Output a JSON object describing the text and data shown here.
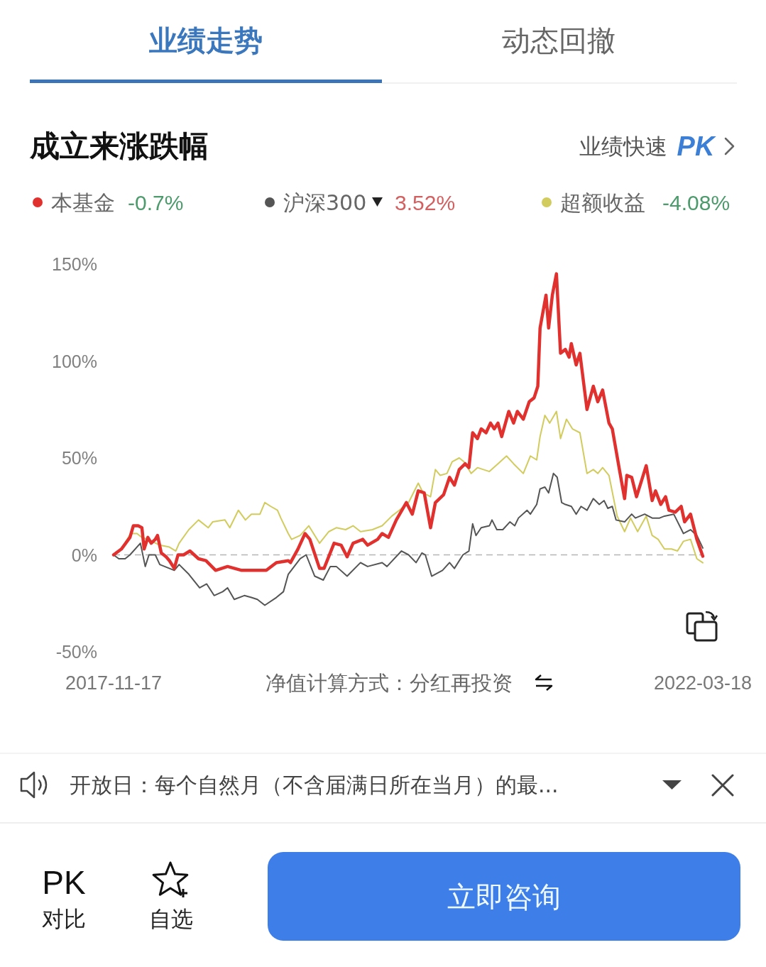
{
  "chart_data": {
    "type": "line",
    "title": "成立来涨跌幅",
    "annotations": [
      "业绩走势",
      "动态回撤",
      "业绩快速",
      "PK",
      "-0.7%",
      "3.52%",
      "-4.08%",
      "净值计算方式：分红再投资",
      "开放日：每个自然月（不含届满日所在当月）的最...",
      "PK",
      "对比",
      "自选",
      "立即咨询"
    ],
    "xlim": [
      "2017-11-17",
      "2022-03-18"
    ],
    "xticks": [
      "2017-11-17",
      "2022-03-18"
    ],
    "ylim": [
      -50,
      150
    ],
    "yticks": [
      {
        "value": -50,
        "label": "-50%"
      },
      {
        "value": 0,
        "label": "0%"
      },
      {
        "value": 50,
        "label": "50%"
      },
      {
        "value": 100,
        "label": "100%"
      },
      {
        "value": 150,
        "label": "150%"
      }
    ],
    "legend": "top",
    "ref_lines": [
      {
        "axis": "y",
        "value": 0,
        "color": "#b5b5b5",
        "line_style": "dashed"
      }
    ],
    "series": [
      {
        "name": "本基金",
        "color": "#e0312f",
        "x": [
          "2017-11-17",
          "2017-12-08",
          "2017-12-31",
          "2018-01-09",
          "2018-01-22",
          "2018-02-01",
          "2018-02-07",
          "2018-02-17",
          "2018-02-26",
          "2018-03-09",
          "2018-03-15",
          "2018-03-25",
          "2018-04-07",
          "2018-04-16",
          "2018-04-29",
          "2018-05-09",
          "2018-05-24",
          "2018-06-10",
          "2018-07-03",
          "2018-07-23",
          "2018-08-18",
          "2018-09-19",
          "2018-10-27",
          "2018-11-22",
          "2019-01-01",
          "2019-01-28",
          "2019-03-01",
          "2019-03-07",
          "2019-03-27",
          "2019-04-15",
          "2019-04-28",
          "2019-05-24",
          "2019-06-05",
          "2019-07-02",
          "2019-07-21",
          "2019-08-06",
          "2019-08-22",
          "2019-09-17",
          "2019-09-30",
          "2019-10-27",
          "2019-11-08",
          "2019-11-25",
          "2019-12-16",
          "2020-01-12",
          "2020-01-28",
          "2020-02-13",
          "2020-02-29",
          "2020-03-17",
          "2020-03-30",
          "2020-04-21",
          "2020-05-07",
          "2020-05-20",
          "2020-06-02",
          "2020-06-18",
          "2020-06-28",
          "2020-07-08",
          "2020-07-21",
          "2020-07-31",
          "2020-08-13",
          "2020-08-25",
          "2020-09-04",
          "2020-09-14",
          "2020-09-24",
          "2020-10-13",
          "2020-10-26",
          "2020-11-05",
          "2020-11-21",
          "2020-12-07",
          "2020-12-20",
          "2020-12-30",
          "2021-01-05",
          "2021-01-21",
          "2021-01-28",
          "2021-02-07",
          "2021-02-18",
          "2021-03-01",
          "2021-03-14",
          "2021-03-24",
          "2021-03-30",
          "2021-04-12",
          "2021-04-22",
          "2021-05-11",
          "2021-05-28",
          "2021-06-09",
          "2021-06-22",
          "2021-07-09",
          "2021-07-18",
          "2021-08-07",
          "2021-08-20",
          "2021-08-26",
          "2021-09-08",
          "2021-09-21",
          "2021-10-17",
          "2021-11-02",
          "2021-11-11",
          "2021-11-25",
          "2021-12-08",
          "2021-12-17",
          "2022-01-03",
          "2022-01-19",
          "2022-01-28",
          "2022-02-13",
          "2022-03-02",
          "2022-03-18"
        ],
        "values": [
          0,
          3,
          9,
          15,
          15,
          14,
          3,
          9,
          6,
          8,
          10,
          1,
          -1,
          -3,
          -7,
          0,
          0,
          2,
          -2,
          -3,
          -8,
          -6,
          -8,
          -8,
          -8,
          -4,
          -3,
          -4,
          3,
          11,
          8,
          -7,
          -7,
          6,
          5,
          -1,
          6,
          8,
          5,
          8,
          11,
          9,
          18,
          27,
          21,
          33,
          32,
          14,
          27,
          31,
          40,
          36,
          44,
          47,
          45,
          63,
          60,
          65,
          63,
          68,
          65,
          68,
          61,
          74,
          68,
          74,
          70,
          79,
          81,
          87,
          117,
          134,
          117,
          134,
          145,
          104,
          106,
          102,
          109,
          98,
          104,
          75,
          87,
          79,
          85,
          68,
          65,
          43,
          29,
          41,
          40,
          30,
          46,
          28,
          33,
          26,
          30,
          23,
          22,
          25,
          17,
          21,
          8,
          -0.7
        ]
      },
      {
        "name": "沪深300",
        "color": "#555555",
        "x": [
          "2017-11-17",
          "2017-12-01",
          "2017-12-18",
          "2017-12-31",
          "2018-01-28",
          "2018-02-10",
          "2018-02-20",
          "2018-03-09",
          "2018-03-21",
          "2018-04-16",
          "2018-04-29",
          "2018-05-12",
          "2018-06-07",
          "2018-07-06",
          "2018-07-25",
          "2018-08-14",
          "2018-09-06",
          "2018-09-19",
          "2018-10-07",
          "2018-11-03",
          "2018-11-22",
          "2018-12-08",
          "2018-12-28",
          "2019-01-28",
          "2019-02-16",
          "2019-03-01",
          "2019-04-02",
          "2019-04-18",
          "2019-05-11",
          "2019-06-03",
          "2019-06-22",
          "2019-07-08",
          "2019-08-06",
          "2019-09-11",
          "2019-09-30",
          "2019-11-08",
          "2019-11-21",
          "2019-12-30",
          "2020-01-18",
          "2020-02-07",
          "2020-02-23",
          "2020-03-03",
          "2020-03-20",
          "2020-04-18",
          "2020-05-07",
          "2020-05-20",
          "2020-06-12",
          "2020-06-28",
          "2020-07-08",
          "2020-07-17",
          "2020-07-31",
          "2020-08-22",
          "2020-08-29",
          "2020-09-11",
          "2020-09-27",
          "2020-10-16",
          "2020-10-29",
          "2020-11-08",
          "2020-12-01",
          "2020-12-10",
          "2020-12-27",
          "2021-01-05",
          "2021-01-18",
          "2021-01-28",
          "2021-02-10",
          "2021-02-20",
          "2021-03-04",
          "2021-03-14",
          "2021-03-30",
          "2021-04-12",
          "2021-04-25",
          "2021-05-11",
          "2021-05-28",
          "2021-06-13",
          "2021-06-26",
          "2021-07-06",
          "2021-07-18",
          "2021-07-28",
          "2021-08-20",
          "2021-09-08",
          "2021-09-18",
          "2021-10-13",
          "2021-11-02",
          "2021-11-22",
          "2021-12-05",
          "2021-12-30",
          "2022-01-25",
          "2022-02-13",
          "2022-03-02",
          "2022-03-18"
        ],
        "values": [
          0,
          -2,
          -2,
          0,
          6,
          -6,
          0,
          0,
          -5,
          -7,
          -8,
          -5,
          -10,
          -17,
          -15,
          -21,
          -19,
          -17,
          -23,
          -21,
          -22,
          -23,
          -26,
          -22,
          -19,
          -10,
          -2,
          0,
          -11,
          -13,
          -6,
          -6,
          -11,
          -4,
          -6,
          -4,
          -6,
          2,
          0,
          -4,
          1,
          0,
          -11,
          -8,
          -4,
          -7,
          0,
          2,
          16,
          10,
          14,
          15,
          18,
          13,
          13,
          17,
          15,
          19,
          23,
          21,
          26,
          34,
          35,
          32,
          42,
          40,
          27,
          26,
          25,
          21,
          25,
          23,
          29,
          26,
          28,
          24,
          25,
          18,
          17,
          21,
          19,
          21,
          19,
          19,
          20,
          21,
          11,
          13,
          10,
          3.52
        ]
      },
      {
        "name": "超额收益",
        "color": "#d2cc5e",
        "x": [
          "2017-11-17",
          "2017-12-08",
          "2018-01-02",
          "2018-01-19",
          "2018-02-01",
          "2018-02-17",
          "2018-03-21",
          "2018-04-16",
          "2018-05-03",
          "2018-05-12",
          "2018-06-07",
          "2018-07-03",
          "2018-07-29",
          "2018-08-10",
          "2018-09-12",
          "2018-09-25",
          "2018-10-18",
          "2018-11-06",
          "2018-11-22",
          "2018-12-15",
          "2018-12-28",
          "2019-01-13",
          "2019-01-31",
          "2019-02-09",
          "2019-03-01",
          "2019-03-10",
          "2019-04-02",
          "2019-04-25",
          "2019-05-24",
          "2019-06-18",
          "2019-07-08",
          "2019-08-02",
          "2019-08-22",
          "2019-09-11",
          "2019-10-13",
          "2019-11-08",
          "2019-12-04",
          "2019-12-24",
          "2020-01-18",
          "2020-02-13",
          "2020-02-26",
          "2020-03-17",
          "2020-03-30",
          "2020-04-12",
          "2020-04-30",
          "2020-05-14",
          "2020-06-02",
          "2020-06-15",
          "2020-07-04",
          "2020-07-21",
          "2020-08-22",
          "2020-09-14",
          "2020-10-07",
          "2020-10-26",
          "2020-11-21",
          "2020-12-10",
          "2020-12-27",
          "2021-01-05",
          "2021-01-18",
          "2021-01-31",
          "2021-02-18",
          "2021-03-01",
          "2021-03-17",
          "2021-04-02",
          "2021-04-22",
          "2021-05-11",
          "2021-05-28",
          "2021-06-09",
          "2021-06-22",
          "2021-07-09",
          "2021-07-31",
          "2021-08-20",
          "2021-09-05",
          "2021-09-24",
          "2021-10-17",
          "2021-11-02",
          "2021-11-18",
          "2021-12-05",
          "2021-12-24",
          "2022-01-09",
          "2022-01-25",
          "2022-02-13",
          "2022-03-02",
          "2022-03-18"
        ],
        "values": [
          0,
          3,
          11,
          11,
          9,
          8,
          5,
          4,
          2,
          6,
          13,
          18,
          14,
          17,
          18,
          14,
          23,
          18,
          21,
          21,
          27,
          25,
          23,
          19,
          11,
          8,
          10,
          15,
          6,
          12,
          14,
          13,
          15,
          12,
          13,
          15,
          20,
          23,
          27,
          37,
          32,
          30,
          44,
          41,
          42,
          48,
          50,
          48,
          42,
          45,
          43,
          47,
          51,
          47,
          42,
          51,
          49,
          61,
          72,
          68,
          74,
          60,
          70,
          65,
          63,
          42,
          44,
          42,
          45,
          41,
          20,
          12,
          19,
          12,
          20,
          10,
          8,
          3,
          3,
          2,
          7,
          8,
          -2,
          -4.08
        ]
      }
    ]
  }
}
